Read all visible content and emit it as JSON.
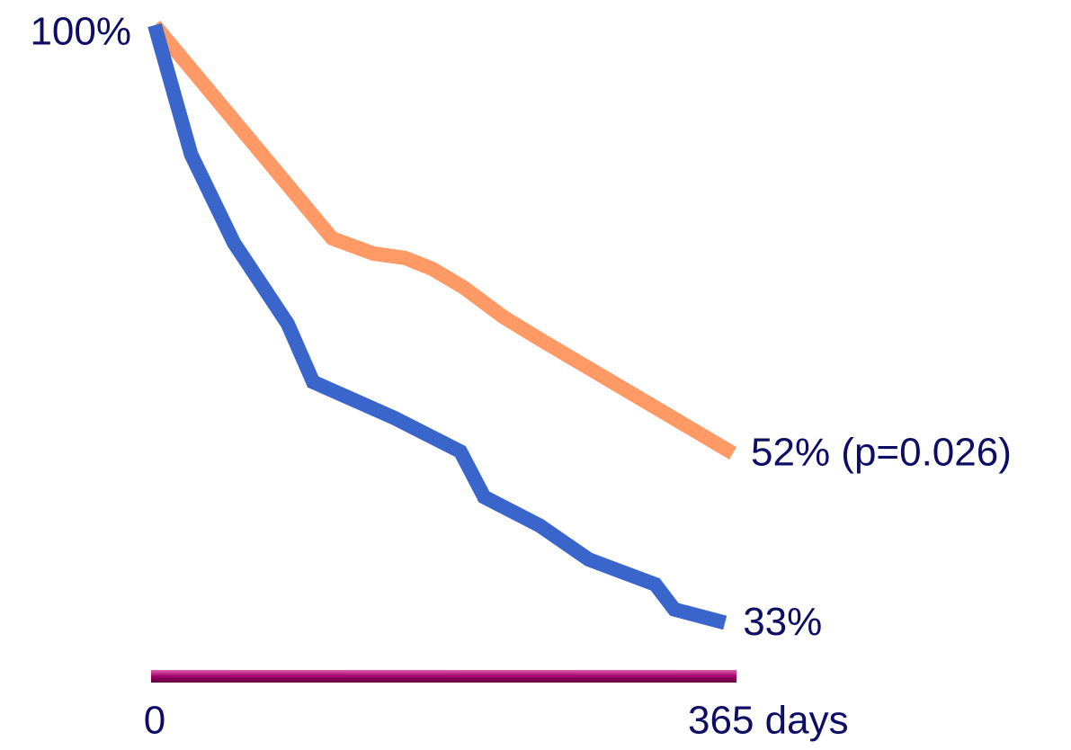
{
  "chart_data": {
    "type": "line",
    "xlim": [
      0,
      365
    ],
    "ylim": [
      27,
      100
    ],
    "xticks": [
      0,
      {
        "value": 365,
        "label": "365 days"
      }
    ],
    "yticks": [
      {
        "value": 100,
        "label": "100%"
      }
    ],
    "series": [
      {
        "color": "#ff9966",
        "x": [
          0,
          112,
          138,
          158,
          175,
          195,
          220,
          243,
          365
        ],
        "values": [
          100,
          76.1,
          74.4,
          73.9,
          72.7,
          70.6,
          67.3,
          64.8,
          52
        ],
        "value_labels": [
          null,
          null,
          null,
          null,
          null,
          null,
          null,
          null,
          "52% (p=0.026)"
        ]
      },
      {
        "color": "#3a66cc",
        "x": [
          0,
          23,
          50,
          84,
          100,
          152,
          193,
          208,
          243,
          274,
          316,
          328,
          360
        ],
        "values": [
          100,
          85.5,
          75.6,
          66.5,
          60.0,
          55.9,
          52.2,
          47.1,
          43.9,
          40.1,
          37.3,
          34.5,
          33
        ],
        "value_labels": [
          null,
          null,
          null,
          null,
          null,
          null,
          null,
          null,
          null,
          null,
          null,
          null,
          "33%"
        ]
      }
    ]
  }
}
